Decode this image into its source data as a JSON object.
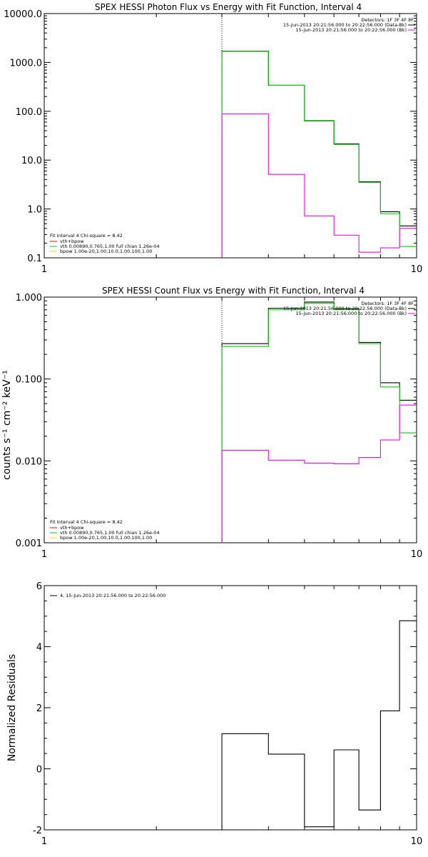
{
  "colors": {
    "data": "#000000",
    "background": "#ff00ff",
    "fit": "#00d000",
    "comp_vth": "#00d000",
    "comp_bpow": "#ffd000",
    "vth_bpow": "#ff0000"
  },
  "chart_data": [
    {
      "type": "line",
      "title": "SPEX HESSI Photon Flux vs Energy with Fit Function, Interval 4",
      "xscale": "log",
      "yscale": "log",
      "xlim": [
        1,
        10
      ],
      "ylim": [
        0.1,
        10000
      ],
      "x_ticks": [
        "1",
        "10"
      ],
      "y_ticks": [
        "0.1",
        "1.0",
        "10.0",
        "100.0",
        "1000.0",
        "10000.0"
      ],
      "vline_x": 3.0,
      "bin_edges": [
        3,
        4,
        5,
        6,
        7,
        8,
        9,
        10
      ],
      "legend_top": [
        "Detectors: 1F 3F 4F 8F",
        "15-Jun-2013 20:21:56.000 to 20:22:56.000 (Data-Bk)",
        "15-Jun-2013 20:21:56.000 to 20:22:56.000 (Bk)"
      ],
      "legend_bottom": [
        "Fit Interval 4   Chi-square = 8.42",
        "vth+bpow",
        "vth 0.00890,0.765,1.00  full chian 1.26e-04",
        "bpow 1.00e-20,1.00,10.0,1.00,100,1.00"
      ],
      "series": [
        {
          "name": "Data-Bk",
          "color": "#000000",
          "values": [
            1700,
            340,
            64,
            21.5,
            3.6,
            0.88,
            0.45
          ]
        },
        {
          "name": "Fit",
          "color": "#00d000",
          "values": [
            1680,
            340,
            63,
            21,
            3.5,
            0.8,
            0.17
          ]
        },
        {
          "name": "Bk",
          "color": "#ff00ff",
          "values": [
            88,
            5.1,
            0.72,
            0.29,
            0.13,
            0.16,
            0.4
          ]
        }
      ]
    },
    {
      "type": "line",
      "title": "SPEX HESSI Count Flux vs Energy with Fit Function, Interval 4",
      "xscale": "log",
      "yscale": "log",
      "xlim": [
        1,
        10
      ],
      "ylim": [
        0.001,
        1.0
      ],
      "x_ticks": [
        "1",
        "10"
      ],
      "y_ticks": [
        "0.001",
        "0.010",
        "0.100",
        "1.000"
      ],
      "ylabel_partial": "counts s⁻¹ cm⁻² keV⁻¹",
      "vline_x": 3.0,
      "bin_edges": [
        3,
        4,
        5,
        6,
        7,
        8,
        9,
        10
      ],
      "legend_top": [
        "Detectors: 1F 3F 4F 8F",
        "15-Jun-2013 20:21:56.000 to 20:22:56.000 (Data-Bk)",
        "15-Jun-2013 20:21:56.000 to 20:22:56.000 (Bk)"
      ],
      "legend_bottom": [
        "Fit Interval 4   Chi-square = 8.42",
        "vth+bpow",
        "vth 0.00890,0.765,1.00  full chian 1.26e-04",
        "bpow 1.00e-20,1.00,10.0,1.00,100,1.00"
      ],
      "series": [
        {
          "name": "Data-Bk",
          "color": "#000000",
          "values": [
            0.27,
            0.73,
            0.87,
            0.72,
            0.28,
            0.09,
            0.055
          ]
        },
        {
          "name": "Fit",
          "color": "#00d000",
          "values": [
            0.25,
            0.7,
            0.84,
            0.7,
            0.27,
            0.08,
            0.022
          ]
        },
        {
          "name": "Bk",
          "color": "#ff00ff",
          "values": [
            0.0135,
            0.0102,
            0.0094,
            0.0092,
            0.011,
            0.018,
            0.048
          ]
        }
      ]
    },
    {
      "type": "line",
      "title": "",
      "xscale": "log",
      "yscale": "linear",
      "xlim": [
        1,
        10
      ],
      "ylim": [
        -2,
        6
      ],
      "x_ticks": [
        "1",
        "10"
      ],
      "y_ticks": [
        "-2",
        "0",
        "2",
        "4",
        "6"
      ],
      "ylabel": "Normalized Residuals",
      "bin_edges": [
        3,
        4,
        5,
        6,
        7,
        8,
        9,
        10
      ],
      "legend": "4, 15-Jun-2013 20:21:56.000 to 20:22:56.000",
      "series": [
        {
          "name": "",
          "color": "#000000",
          "values": [
            1.15,
            0.48,
            -1.9,
            0.62,
            -1.35,
            1.9,
            4.85
          ]
        }
      ]
    }
  ]
}
